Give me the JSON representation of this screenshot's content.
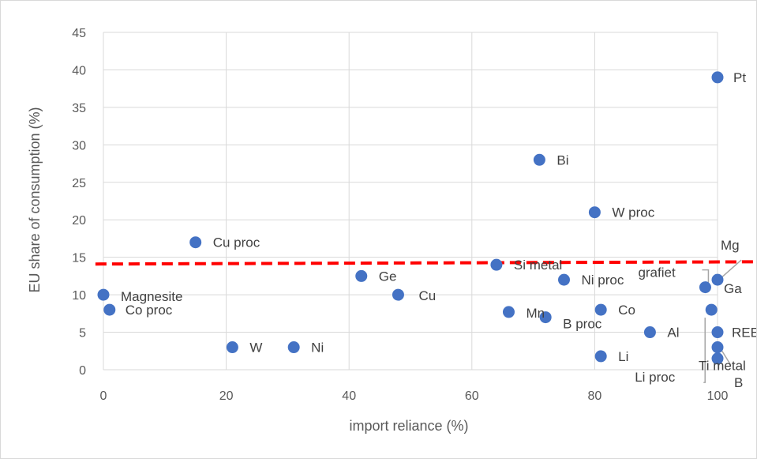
{
  "chart_data": {
    "type": "scatter",
    "title": "",
    "xlabel": "import reliance (%)",
    "ylabel": "EU share of consumption (%)",
    "xlim": [
      0,
      100
    ],
    "ylim": [
      0,
      45
    ],
    "xticks": [
      0,
      20,
      40,
      60,
      80,
      100
    ],
    "yticks": [
      0,
      5,
      10,
      15,
      20,
      25,
      30,
      35,
      40,
      45
    ],
    "grid": true,
    "marker_color": "#4472c4",
    "reference_line": {
      "style": "dashed",
      "color": "#ff0000",
      "y_start": 14.1,
      "y_end": 14.4
    },
    "points": [
      {
        "label": "Pt",
        "x": 100,
        "y": 39
      },
      {
        "label": "Bi",
        "x": 71,
        "y": 28
      },
      {
        "label": "W proc",
        "x": 80,
        "y": 21
      },
      {
        "label": "Cu proc",
        "x": 15,
        "y": 17
      },
      {
        "label": "Si metal",
        "x": 64,
        "y": 14
      },
      {
        "label": "Ge",
        "x": 42,
        "y": 12.5
      },
      {
        "label": "Ni proc",
        "x": 75,
        "y": 12
      },
      {
        "label": "Mg",
        "x": 100,
        "y": 12
      },
      {
        "label": "Ga",
        "x": 100,
        "y": 12
      },
      {
        "label": "grafiet",
        "x": 98,
        "y": 11
      },
      {
        "label": "Magnesite",
        "x": 0,
        "y": 10
      },
      {
        "label": "Cu",
        "x": 48,
        "y": 10
      },
      {
        "label": "Co proc",
        "x": 1,
        "y": 8
      },
      {
        "label": "Co",
        "x": 81,
        "y": 8
      },
      {
        "label": "Mn",
        "x": 66,
        "y": 7.7
      },
      {
        "label": "B proc",
        "x": 72,
        "y": 7
      },
      {
        "label": "Al",
        "x": 89,
        "y": 5
      },
      {
        "label": "REE",
        "x": 100,
        "y": 5
      },
      {
        "label": "W",
        "x": 21,
        "y": 3
      },
      {
        "label": "Ni",
        "x": 31,
        "y": 3
      },
      {
        "label": "Ti metal",
        "x": 100,
        "y": 3
      },
      {
        "label": "Li",
        "x": 81,
        "y": 1.8
      },
      {
        "label": "B",
        "x": 100,
        "y": 1.5
      },
      {
        "label": "Li proc",
        "x": 99,
        "y": 8
      }
    ]
  }
}
